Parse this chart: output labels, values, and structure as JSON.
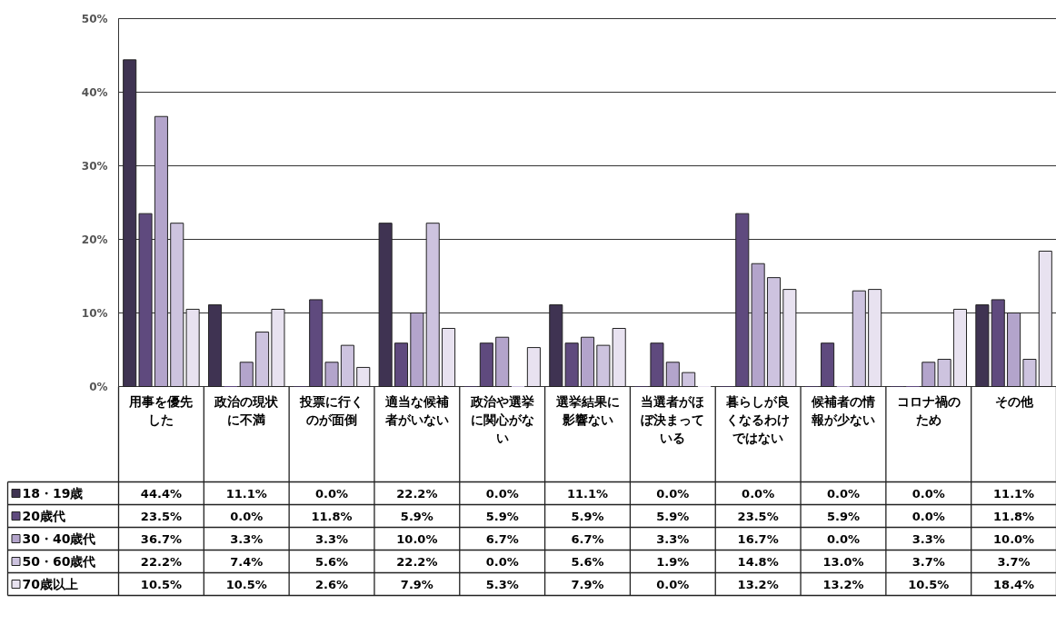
{
  "chart_data": {
    "type": "bar",
    "categories": [
      "用事を優先した",
      "政治の現状に不満",
      "投票に行くのが面倒",
      "適当な候補者がいない",
      "政治や選挙に関心がない",
      "選挙結果に影響ない",
      "当選者がほぼ決まっている",
      "暮らしが良くなるわけではない",
      "候補者の情報が少ない",
      "コロナ禍のため",
      "その他"
    ],
    "series": [
      {
        "name": "18・19歳",
        "color": "#3f3352",
        "values": [
          44.4,
          11.1,
          0.0,
          22.2,
          0.0,
          11.1,
          0.0,
          0.0,
          0.0,
          0.0,
          11.1
        ],
        "value_labels": [
          "44.4%",
          "11.1%",
          "0.0%",
          "22.2%",
          "0.0%",
          "11.1%",
          "0.0%",
          "0.0%",
          "0.0%",
          "0.0%",
          "11.1%"
        ]
      },
      {
        "name": "20歳代",
        "color": "#5f4a7e",
        "values": [
          23.5,
          0.0,
          11.8,
          5.9,
          5.9,
          5.9,
          5.9,
          23.5,
          5.9,
          0.0,
          11.8
        ],
        "value_labels": [
          "23.5%",
          "0.0%",
          "11.8%",
          "5.9%",
          "5.9%",
          "5.9%",
          "5.9%",
          "23.5%",
          "5.9%",
          "0.0%",
          "11.8%"
        ]
      },
      {
        "name": "30・40歳代",
        "color": "#b3a4cb",
        "values": [
          36.7,
          3.3,
          3.3,
          10.0,
          6.7,
          6.7,
          3.3,
          16.7,
          0.0,
          3.3,
          10.0
        ],
        "value_labels": [
          "36.7%",
          "3.3%",
          "3.3%",
          "10.0%",
          "6.7%",
          "6.7%",
          "3.3%",
          "16.7%",
          "0.0%",
          "3.3%",
          "10.0%"
        ]
      },
      {
        "name": "50・60歳代",
        "color": "#cdc3df",
        "values": [
          22.2,
          7.4,
          5.6,
          22.2,
          0.0,
          5.6,
          1.9,
          14.8,
          13.0,
          3.7,
          3.7
        ],
        "value_labels": [
          "22.2%",
          "7.4%",
          "5.6%",
          "22.2%",
          "0.0%",
          "5.6%",
          "1.9%",
          "14.8%",
          "13.0%",
          "3.7%",
          "3.7%"
        ]
      },
      {
        "name": "70歳以上",
        "color": "#e8e2f0",
        "values": [
          10.5,
          10.5,
          2.6,
          7.9,
          5.3,
          7.9,
          0.0,
          13.2,
          13.2,
          10.5,
          18.4
        ],
        "value_labels": [
          "10.5%",
          "10.5%",
          "2.6%",
          "7.9%",
          "5.3%",
          "7.9%",
          "0.0%",
          "13.2%",
          "13.2%",
          "10.5%",
          "18.4%"
        ]
      }
    ],
    "ylim": [
      0,
      50
    ],
    "yticks": [
      {
        "value": 0,
        "label": "0%"
      },
      {
        "value": 10,
        "label": "10%"
      },
      {
        "value": 20,
        "label": "20%"
      },
      {
        "value": 30,
        "label": "30%"
      },
      {
        "value": 40,
        "label": "40%"
      },
      {
        "value": 50,
        "label": "50%"
      }
    ],
    "grid": "y",
    "legend": "bottom"
  }
}
